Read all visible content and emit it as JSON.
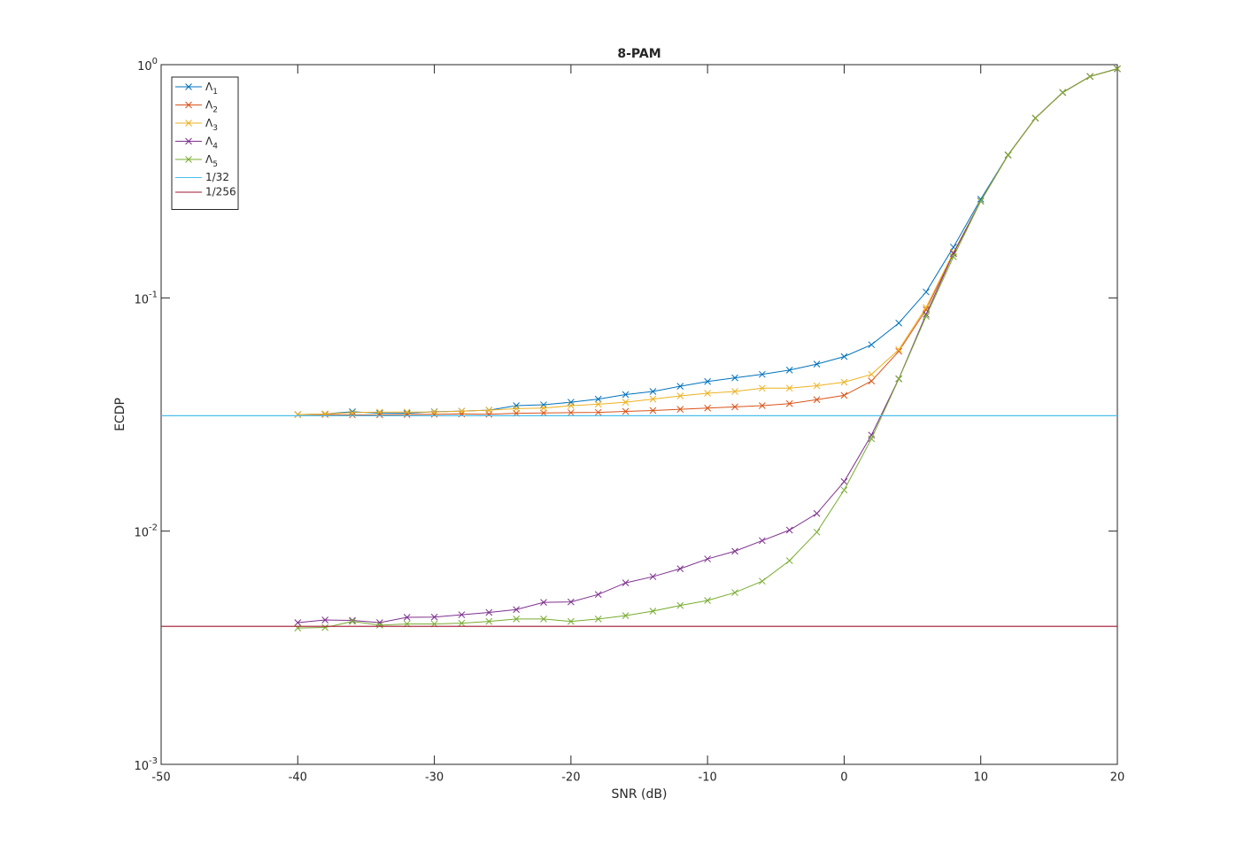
{
  "chart_data": {
    "type": "line",
    "title": "8-PAM",
    "xlabel": "SNR (dB)",
    "ylabel": "ECDP",
    "log_y": true,
    "x": [
      -40,
      -38,
      -36,
      -34,
      -32,
      -30,
      -28,
      -26,
      -24,
      -22,
      -20,
      -18,
      -16,
      -14,
      -12,
      -10,
      -8,
      -6,
      -4,
      -2,
      0,
      2,
      4,
      6,
      8,
      10,
      12,
      14,
      16,
      18,
      20
    ],
    "series": [
      {
        "name": "Λ",
        "subscript": "1",
        "color": "#0072BD",
        "values": [
          0.0316,
          0.0318,
          0.0325,
          0.032,
          0.032,
          0.0325,
          0.0327,
          0.033,
          0.0345,
          0.0348,
          0.0357,
          0.0368,
          0.0385,
          0.0397,
          0.0418,
          0.0438,
          0.0454,
          0.047,
          0.049,
          0.052,
          0.056,
          0.063,
          0.078,
          0.106,
          0.165,
          0.265,
          0.41,
          0.59,
          0.76,
          0.89,
          0.96
        ]
      },
      {
        "name": "Λ",
        "subscript": "2",
        "color": "#D95319",
        "values": [
          0.0316,
          0.0316,
          0.0315,
          0.0315,
          0.0316,
          0.0317,
          0.0318,
          0.0317,
          0.032,
          0.0321,
          0.0322,
          0.0323,
          0.0326,
          0.0329,
          0.0333,
          0.0337,
          0.0341,
          0.0345,
          0.0352,
          0.0366,
          0.0382,
          0.044,
          0.059,
          0.089,
          0.155,
          0.26,
          0.41,
          0.59,
          0.76,
          0.89,
          0.96
        ]
      },
      {
        "name": "Λ",
        "subscript": "3",
        "color": "#EDB120",
        "values": [
          0.0316,
          0.0318,
          0.0322,
          0.0324,
          0.0324,
          0.0324,
          0.0327,
          0.033,
          0.0335,
          0.0337,
          0.0345,
          0.035,
          0.0357,
          0.0368,
          0.038,
          0.039,
          0.0397,
          0.041,
          0.041,
          0.042,
          0.0435,
          0.047,
          0.06,
          0.091,
          0.157,
          0.26,
          0.41,
          0.59,
          0.76,
          0.89,
          0.96
        ]
      },
      {
        "name": "Λ",
        "subscript": "4",
        "color": "#7E2F8E",
        "values": [
          0.00405,
          0.00416,
          0.00414,
          0.00405,
          0.00427,
          0.00428,
          0.00438,
          0.00448,
          0.00461,
          0.00495,
          0.00497,
          0.00535,
          0.006,
          0.00638,
          0.0069,
          0.0076,
          0.0082,
          0.0091,
          0.0101,
          0.0119,
          0.0163,
          0.0258,
          0.045,
          0.085,
          0.155,
          0.26,
          0.41,
          0.59,
          0.76,
          0.89,
          0.96
        ]
      },
      {
        "name": "Λ",
        "subscript": "5",
        "color": "#77AC30",
        "values": [
          0.00384,
          0.00386,
          0.0041,
          0.00395,
          0.004,
          0.004,
          0.00403,
          0.0041,
          0.0042,
          0.0042,
          0.0041,
          0.0042,
          0.00434,
          0.00454,
          0.0048,
          0.00504,
          0.00545,
          0.0061,
          0.00747,
          0.0099,
          0.015,
          0.0249,
          0.0449,
          0.0834,
          0.15,
          0.26,
          0.41,
          0.59,
          0.76,
          0.89,
          0.96
        ]
      }
    ],
    "reference_lines": [
      {
        "name": "1/32",
        "color": "#4DBEEE",
        "value": 0.03125
      },
      {
        "name": "1/256",
        "color": "#A2142F",
        "value": 0.00390625
      }
    ],
    "xlim": [
      -50,
      20
    ],
    "xticks": [
      -50,
      -40,
      -30,
      -20,
      -10,
      0,
      10,
      20
    ],
    "ylim": [
      0.001,
      1
    ],
    "yticks": [
      {
        "value": 0.001,
        "label": "10",
        "exponent": "-3"
      },
      {
        "value": 0.01,
        "label": "10",
        "exponent": "-2"
      },
      {
        "value": 0.1,
        "label": "10",
        "exponent": "-1"
      },
      {
        "value": 1,
        "label": "10",
        "exponent": "0"
      }
    ],
    "legend": "upper-left"
  }
}
